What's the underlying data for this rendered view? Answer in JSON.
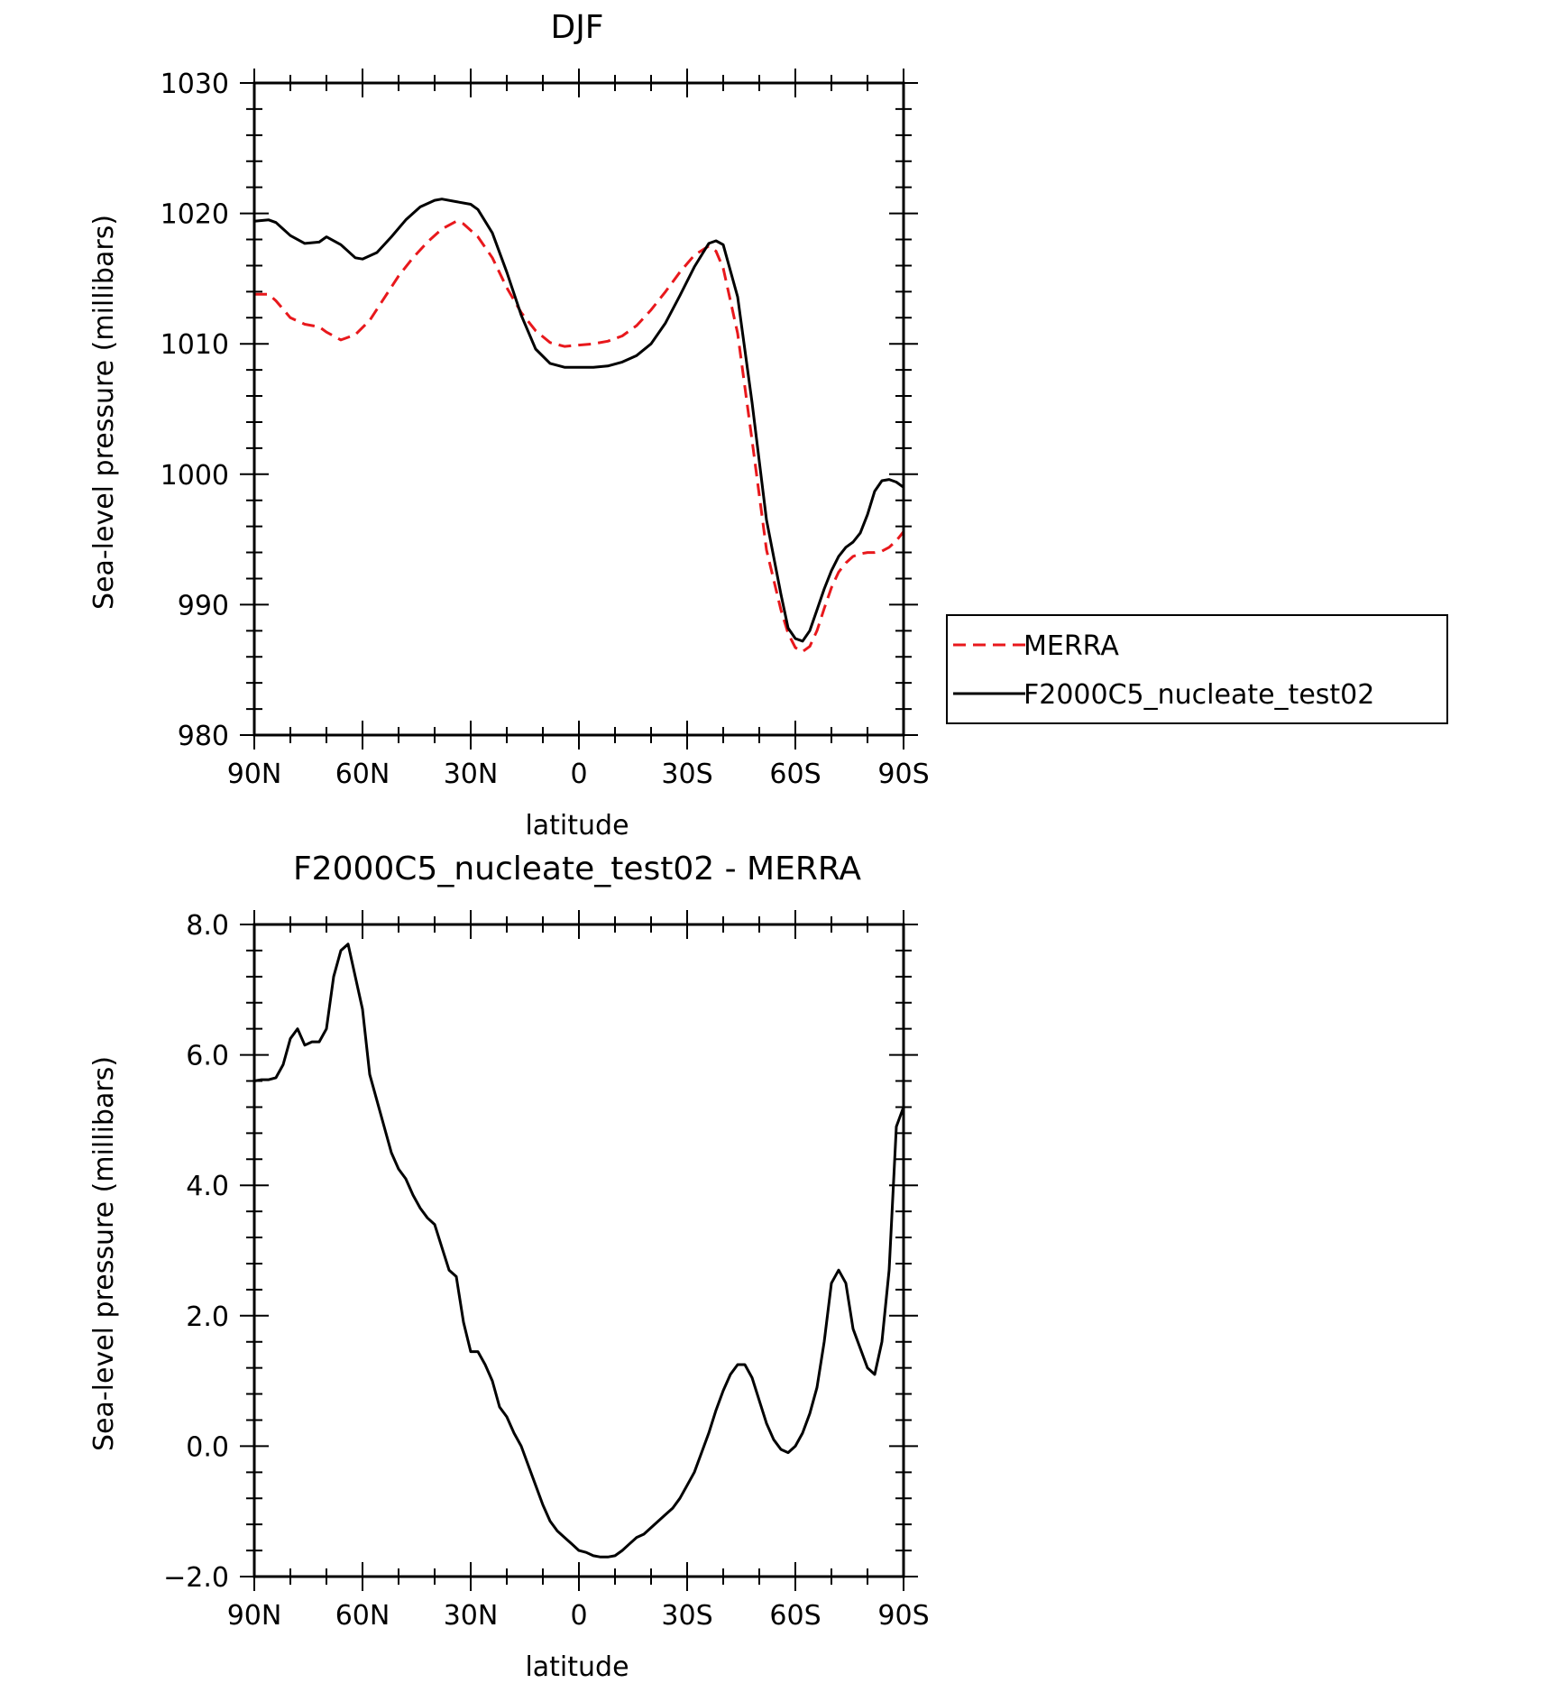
{
  "chart_data": [
    {
      "type": "line",
      "title": "DJF",
      "xlabel": "latitude",
      "ylabel": "Sea-level pressure (millibars)",
      "xlim": [
        90,
        -90
      ],
      "ylim": [
        980,
        1030
      ],
      "x_ticks": [
        90,
        60,
        30,
        0,
        -30,
        -60,
        -90
      ],
      "x_tick_labels": [
        "90N",
        "60N",
        "30N",
        "0",
        "30S",
        "60S",
        "90S"
      ],
      "y_ticks": [
        980,
        990,
        1000,
        1010,
        1020,
        1030
      ],
      "y_tick_labels": [
        "980",
        "990",
        "1000",
        "1010",
        "1020",
        "1030"
      ],
      "legend_position": "right",
      "series": [
        {
          "name": "MERRA",
          "color": "#e8181c",
          "dash": "dashed",
          "x": [
            90,
            86,
            84,
            80,
            76,
            72,
            70,
            66,
            62,
            58,
            54,
            50,
            46,
            42,
            38,
            34,
            32,
            28,
            24,
            20,
            16,
            12,
            8,
            4,
            0,
            -4,
            -8,
            -12,
            -16,
            -20,
            -24,
            -28,
            -32,
            -36,
            -38,
            -40,
            -44,
            -48,
            -52,
            -56,
            -58,
            -60,
            -62,
            -64,
            -66,
            -68,
            -70,
            -72,
            -74,
            -76,
            -78,
            -80,
            -82,
            -84,
            -86,
            -88,
            -90
          ],
          "y": [
            1013.8,
            1013.8,
            1013.3,
            1012.0,
            1011.5,
            1011.3,
            1010.9,
            1010.3,
            1010.7,
            1011.8,
            1013.5,
            1015.2,
            1016.6,
            1017.8,
            1018.8,
            1019.4,
            1019.2,
            1018.2,
            1016.6,
            1014.3,
            1012.4,
            1011.0,
            1010.1,
            1009.8,
            1009.9,
            1010.0,
            1010.2,
            1010.6,
            1011.4,
            1012.6,
            1014.0,
            1015.5,
            1016.8,
            1017.5,
            1017.1,
            1015.8,
            1010.8,
            1002.6,
            994.2,
            989.6,
            987.8,
            986.7,
            986.4,
            986.8,
            988.0,
            989.7,
            991.3,
            992.5,
            993.2,
            993.7,
            993.9,
            994.0,
            994.0,
            994.1,
            994.4,
            994.9,
            995.6
          ]
        },
        {
          "name": "F2000C5_nucleate_test02",
          "color": "#000000",
          "dash": "solid",
          "x": [
            90,
            86,
            84,
            80,
            76,
            72,
            70,
            66,
            62,
            60,
            56,
            52,
            48,
            44,
            40,
            38,
            34,
            30,
            28,
            24,
            20,
            16,
            12,
            8,
            4,
            0,
            -4,
            -8,
            -12,
            -16,
            -20,
            -24,
            -28,
            -32,
            -36,
            -38,
            -40,
            -44,
            -48,
            -52,
            -56,
            -58,
            -60,
            -62,
            -64,
            -66,
            -68,
            -70,
            -72,
            -74,
            -76,
            -78,
            -80,
            -82,
            -84,
            -86,
            -88,
            -90
          ],
          "y": [
            1019.4,
            1019.5,
            1019.3,
            1018.3,
            1017.7,
            1017.8,
            1018.2,
            1017.6,
            1016.6,
            1016.5,
            1017.0,
            1018.2,
            1019.5,
            1020.5,
            1021.0,
            1021.1,
            1020.9,
            1020.7,
            1020.3,
            1018.5,
            1015.5,
            1012.2,
            1009.6,
            1008.5,
            1008.2,
            1008.2,
            1008.2,
            1008.3,
            1008.6,
            1009.1,
            1010.0,
            1011.6,
            1013.7,
            1015.9,
            1017.7,
            1017.9,
            1017.6,
            1013.6,
            1005.5,
            996.5,
            990.8,
            988.2,
            987.4,
            987.2,
            988.0,
            989.6,
            991.2,
            992.6,
            993.7,
            994.4,
            994.8,
            995.5,
            996.9,
            998.7,
            999.5,
            999.6,
            999.4,
            999.0
          ]
        }
      ]
    },
    {
      "type": "line",
      "title": "F2000C5_nucleate_test02 - MERRA",
      "xlabel": "latitude",
      "ylabel": "Sea-level pressure (millibars)",
      "xlim": [
        90,
        -90
      ],
      "ylim": [
        -2.0,
        8.0
      ],
      "x_ticks": [
        90,
        60,
        30,
        0,
        -30,
        -60,
        -90
      ],
      "x_tick_labels": [
        "90N",
        "60N",
        "30N",
        "0",
        "30S",
        "60S",
        "90S"
      ],
      "y_ticks": [
        -2.0,
        0.0,
        2.0,
        4.0,
        6.0,
        8.0
      ],
      "y_tick_labels": [
        "-2.0",
        "0.0",
        "2.0",
        "4.0",
        "6.0",
        "8.0"
      ],
      "series": [
        {
          "color": "#000000",
          "dash": "solid",
          "x": [
            90,
            88,
            86,
            84,
            82,
            80,
            78,
            76,
            74,
            72,
            70,
            68,
            66,
            64,
            62,
            60,
            58,
            56,
            54,
            52,
            50,
            48,
            46,
            44,
            42,
            40,
            38,
            36,
            34,
            32,
            30,
            28,
            26,
            24,
            22,
            20,
            18,
            16,
            14,
            12,
            10,
            8,
            6,
            4,
            2,
            0,
            -2,
            -4,
            -6,
            -8,
            -10,
            -12,
            -14,
            -16,
            -18,
            -20,
            -22,
            -24,
            -26,
            -28,
            -30,
            -32,
            -34,
            -36,
            -38,
            -40,
            -42,
            -44,
            -46,
            -48,
            -50,
            -52,
            -54,
            -56,
            -58,
            -60,
            -62,
            -64,
            -66,
            -68,
            -70,
            -72,
            -74,
            -76,
            -78,
            -80,
            -82,
            -84,
            -86,
            -88,
            -90
          ],
          "y": [
            5.6,
            5.62,
            5.62,
            5.65,
            5.85,
            6.25,
            6.4,
            6.15,
            6.2,
            6.2,
            6.4,
            7.2,
            7.6,
            7.7,
            7.2,
            6.7,
            5.7,
            5.3,
            4.9,
            4.5,
            4.25,
            4.1,
            3.85,
            3.65,
            3.5,
            3.4,
            3.05,
            2.7,
            2.6,
            1.9,
            1.45,
            1.45,
            1.25,
            1.0,
            0.6,
            0.45,
            0.2,
            0.0,
            -0.3,
            -0.6,
            -0.9,
            -1.15,
            -1.3,
            -1.4,
            -1.5,
            -1.6,
            -1.63,
            -1.68,
            -1.7,
            -1.7,
            -1.68,
            -1.6,
            -1.5,
            -1.4,
            -1.35,
            -1.25,
            -1.15,
            -1.05,
            -0.95,
            -0.8,
            -0.6,
            -0.4,
            -0.1,
            0.2,
            0.55,
            0.85,
            1.1,
            1.25,
            1.25,
            1.05,
            0.7,
            0.35,
            0.1,
            -0.05,
            -0.1,
            0.0,
            0.2,
            0.5,
            0.9,
            1.6,
            2.5,
            2.7,
            2.5,
            1.8,
            1.5,
            1.2,
            1.1,
            1.6,
            2.7,
            4.9,
            5.2
          ]
        }
      ]
    }
  ]
}
